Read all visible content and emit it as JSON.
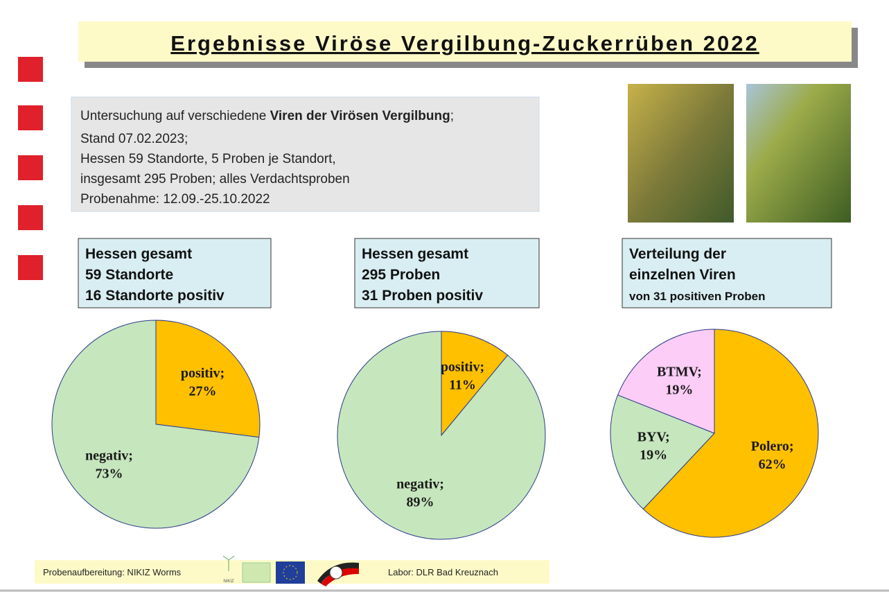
{
  "header": {
    "title": "Ergebnisse Viröse Vergilbung-Zuckerrüben 2022"
  },
  "info": {
    "line1": [
      "Untersuchung auf verschiedene",
      "Viren der Virösen Vergilbung",
      ";"
    ],
    "lines": [
      "Stand 07.02.2023;",
      "Hessen 59 Standorte, 5 Proben je Standort,",
      "insgesamt 295 Proben; alles Verdachtsproben",
      "Probenahme: 12.09.-25.10.2022"
    ]
  },
  "chart_data": [
    {
      "type": "pie",
      "title": [
        "Hessen gesamt",
        "59 Standorte",
        "16 Standorte positiv"
      ],
      "categories": [
        "positiv;",
        "negativ;"
      ],
      "values": [
        27,
        73
      ],
      "value_labels": [
        "27%",
        "73%"
      ],
      "colors": [
        "#ffc000",
        "#c6e6bd"
      ]
    },
    {
      "type": "pie",
      "title": [
        "Hessen gesamt",
        "295 Proben",
        "31 Proben positiv"
      ],
      "categories": [
        "positiv;",
        "negativ;"
      ],
      "values": [
        11,
        89
      ],
      "value_labels": [
        "11%",
        "89%"
      ],
      "colors": [
        "#ffc000",
        "#c6e6bd"
      ]
    },
    {
      "type": "pie",
      "title": [
        "Verteilung der",
        "einzelnen Viren",
        "von 31 positiven Proben"
      ],
      "categories": [
        "Polero;",
        "BYV;",
        "BTMV;"
      ],
      "values": [
        62,
        19,
        19
      ],
      "value_labels": [
        "62%",
        "19%",
        "19%"
      ],
      "colors": [
        "#ffc000",
        "#c6e6bd",
        "#fccdf6"
      ]
    }
  ],
  "footer": {
    "left": "Probenaufbereitung: NIKIZ Worms",
    "logo_text": "NIKIZ",
    "right": "Labor: DLR Bad Kreuznach"
  }
}
